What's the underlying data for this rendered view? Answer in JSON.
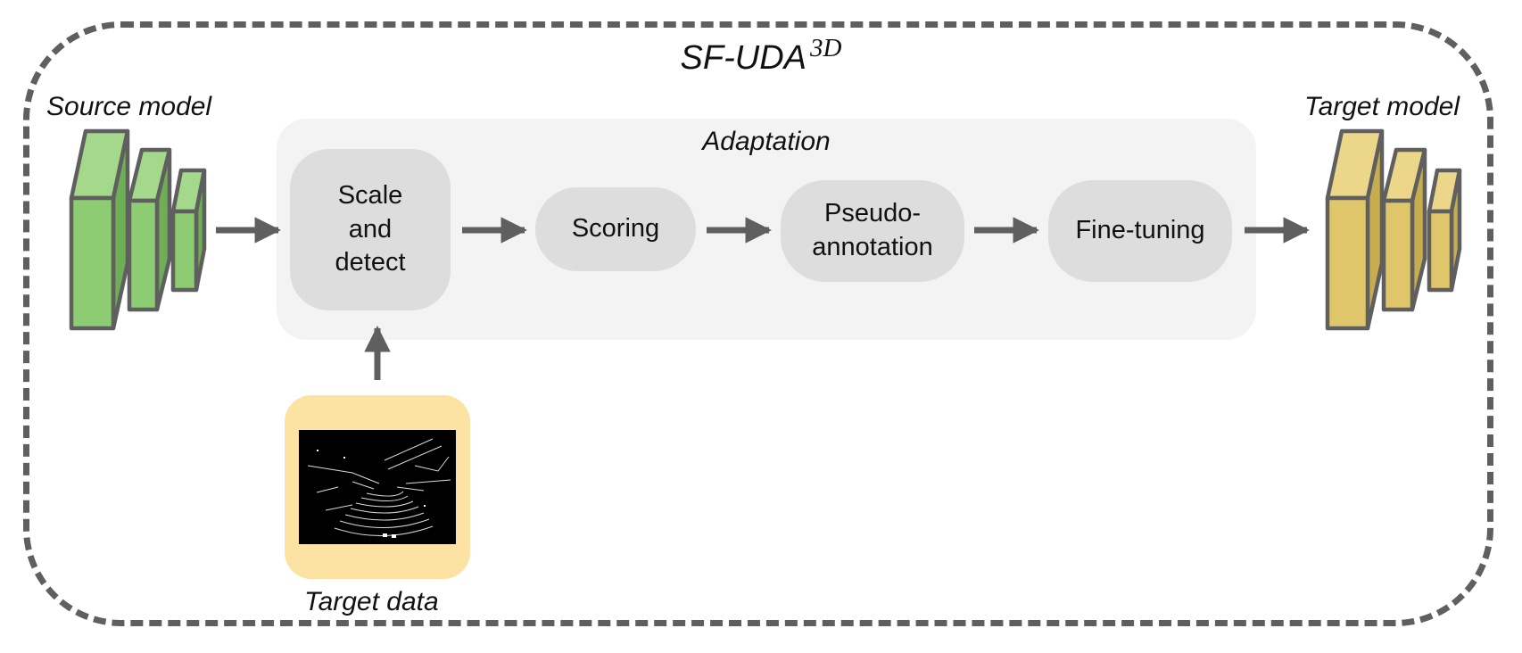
{
  "diagram": {
    "title": "SF-UDA",
    "title_superscript": "3D",
    "source_model_label": "Source model",
    "target_model_label": "Target model",
    "adaptation_label": "Adaptation",
    "target_data_label": "Target data",
    "steps": [
      {
        "label": "Scale\nand\ndetect"
      },
      {
        "label": "Scoring"
      },
      {
        "label": "Pseudo-\nannotation"
      },
      {
        "label": "Fine-tuning"
      }
    ],
    "colors": {
      "source_model": "#8dcc72",
      "target_model": "#e0c66a",
      "arrow": "#5f5f5f",
      "step_fill": "#dddddd",
      "panel_fill": "#f3f3f3",
      "data_fill": "#fde3a3"
    }
  }
}
